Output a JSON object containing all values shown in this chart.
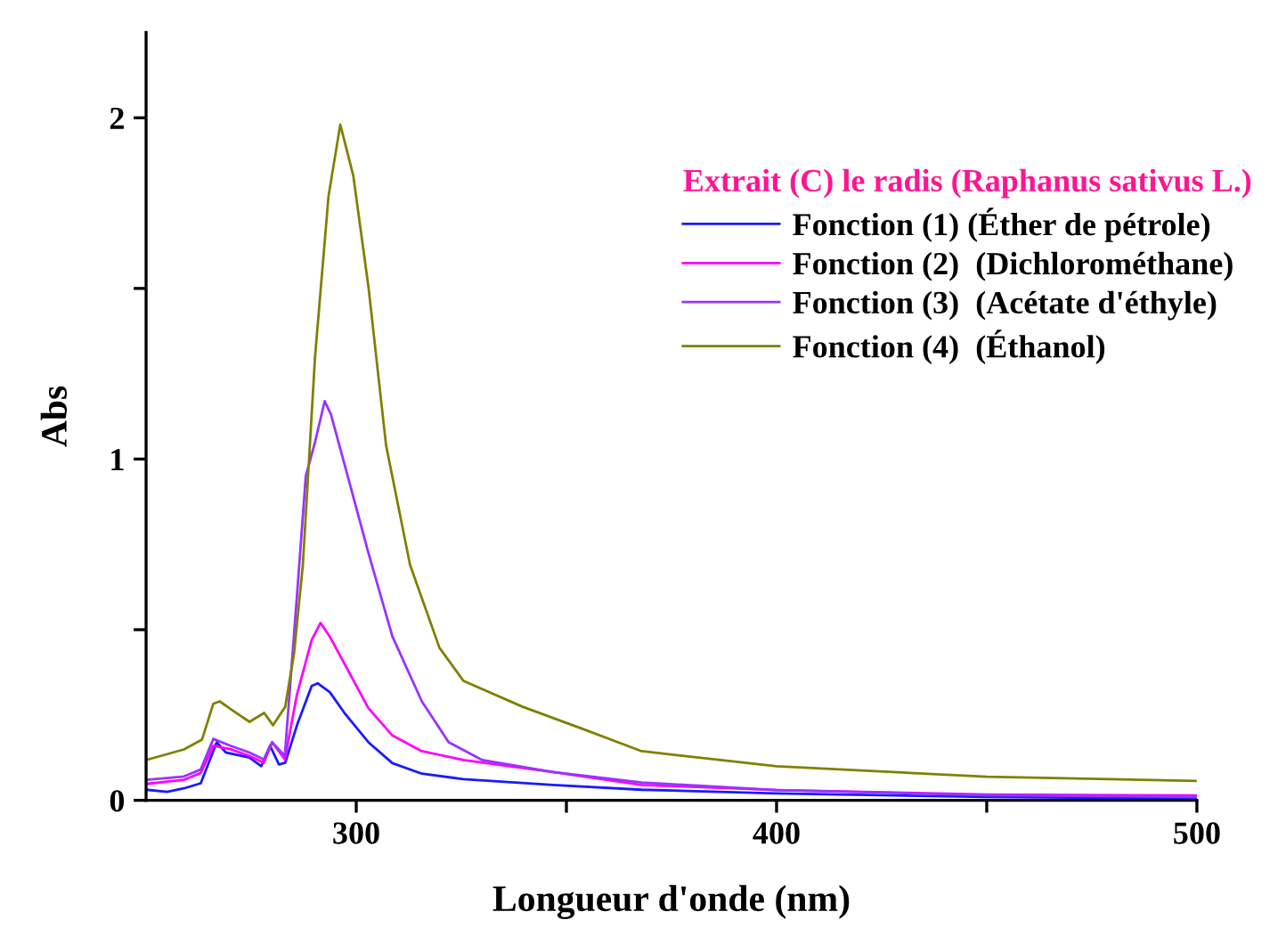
{
  "chart_data": {
    "type": "line",
    "xlabel": "Longueur d'onde (nm)",
    "ylabel": "Abs",
    "legend_title": "Extrait (C) le radis (Raphanus sativus L.)",
    "xlim": [
      250,
      500
    ],
    "xticks": [
      {
        "value": 300,
        "label": "300"
      },
      {
        "value": 350,
        "label": null
      },
      {
        "value": 400,
        "label": "400"
      },
      {
        "value": 450,
        "label": null
      },
      {
        "value": 500,
        "label": "500"
      }
    ],
    "ylim": [
      0,
      2.25
    ],
    "yticks": [
      {
        "value": 0,
        "label": "0"
      },
      {
        "value": 0.5,
        "label": null
      },
      {
        "value": 1,
        "label": "1"
      },
      {
        "value": 1.5,
        "label": null
      },
      {
        "value": 2,
        "label": "2"
      }
    ],
    "grid": false,
    "legend": "top right",
    "marker": "none",
    "line_style": "solid",
    "series": [
      {
        "name": "Fonction (1) (Éther de pétrole)",
        "color": "#1a1aff",
        "x": [
          250,
          255,
          259,
          263,
          266.8,
          269,
          274.6,
          277.4,
          279.5,
          281.6,
          283.1,
          285.9,
          289.4,
          290.8,
          293.7,
          297.2,
          302.9,
          308.6,
          315.6,
          325.5,
          346.8,
          367.9,
          400,
          450,
          500
        ],
        "values": [
          0.031,
          0.025,
          0.035,
          0.05,
          0.17,
          0.14,
          0.125,
          0.1,
          0.16,
          0.105,
          0.11,
          0.22,
          0.335,
          0.343,
          0.317,
          0.256,
          0.17,
          0.109,
          0.078,
          0.062,
          0.045,
          0.031,
          0.02,
          0.01,
          0.005
        ]
      },
      {
        "name": "Fonction (2)  (Dichlorométhane)",
        "color": "#ff00ff",
        "x": [
          250,
          255,
          259,
          263,
          266,
          270,
          274.6,
          278,
          280,
          283,
          285.9,
          289.4,
          291.5,
          293.7,
          297.2,
          302.9,
          308.6,
          315.6,
          325.5,
          346.8,
          367.9,
          400,
          450,
          500
        ],
        "values": [
          0.048,
          0.055,
          0.06,
          0.08,
          0.16,
          0.15,
          0.13,
          0.11,
          0.17,
          0.12,
          0.31,
          0.47,
          0.52,
          0.48,
          0.4,
          0.27,
          0.19,
          0.144,
          0.118,
          0.083,
          0.045,
          0.03,
          0.017,
          0.014
        ]
      },
      {
        "name": "Fonction (3)  (Acétate d'éthyle)",
        "color": "#9933ff",
        "x": [
          250,
          255,
          259,
          263,
          266,
          270,
          274.6,
          278,
          280,
          283,
          285.9,
          288,
          290.2,
          292.5,
          294,
          297.2,
          302.9,
          308.6,
          315.6,
          322,
          330,
          346.8,
          367.9,
          400,
          450,
          500
        ],
        "values": [
          0.06,
          0.065,
          0.07,
          0.09,
          0.18,
          0.16,
          0.14,
          0.12,
          0.17,
          0.13,
          0.6,
          0.95,
          1.05,
          1.17,
          1.13,
          0.985,
          0.725,
          0.48,
          0.29,
          0.17,
          0.118,
          0.083,
          0.052,
          0.03,
          0.015,
          0.01
        ]
      },
      {
        "name": "Fonction (4)  (Éthanol)",
        "color": "#808000",
        "x": [
          250,
          259,
          263.3,
          266,
          267.5,
          270.4,
          274.6,
          278.1,
          280.2,
          283.1,
          285.2,
          287.3,
          290.2,
          293.4,
          296.2,
          299.3,
          302.9,
          307.1,
          312.8,
          319.8,
          325.5,
          339.6,
          353.7,
          367.9,
          400,
          450,
          500
        ],
        "values": [
          0.118,
          0.149,
          0.178,
          0.283,
          0.29,
          0.265,
          0.23,
          0.256,
          0.22,
          0.274,
          0.43,
          0.69,
          1.3,
          1.77,
          1.98,
          1.83,
          1.505,
          1.04,
          0.69,
          0.447,
          0.35,
          0.274,
          0.21,
          0.144,
          0.1,
          0.069,
          0.057
        ]
      }
    ]
  }
}
